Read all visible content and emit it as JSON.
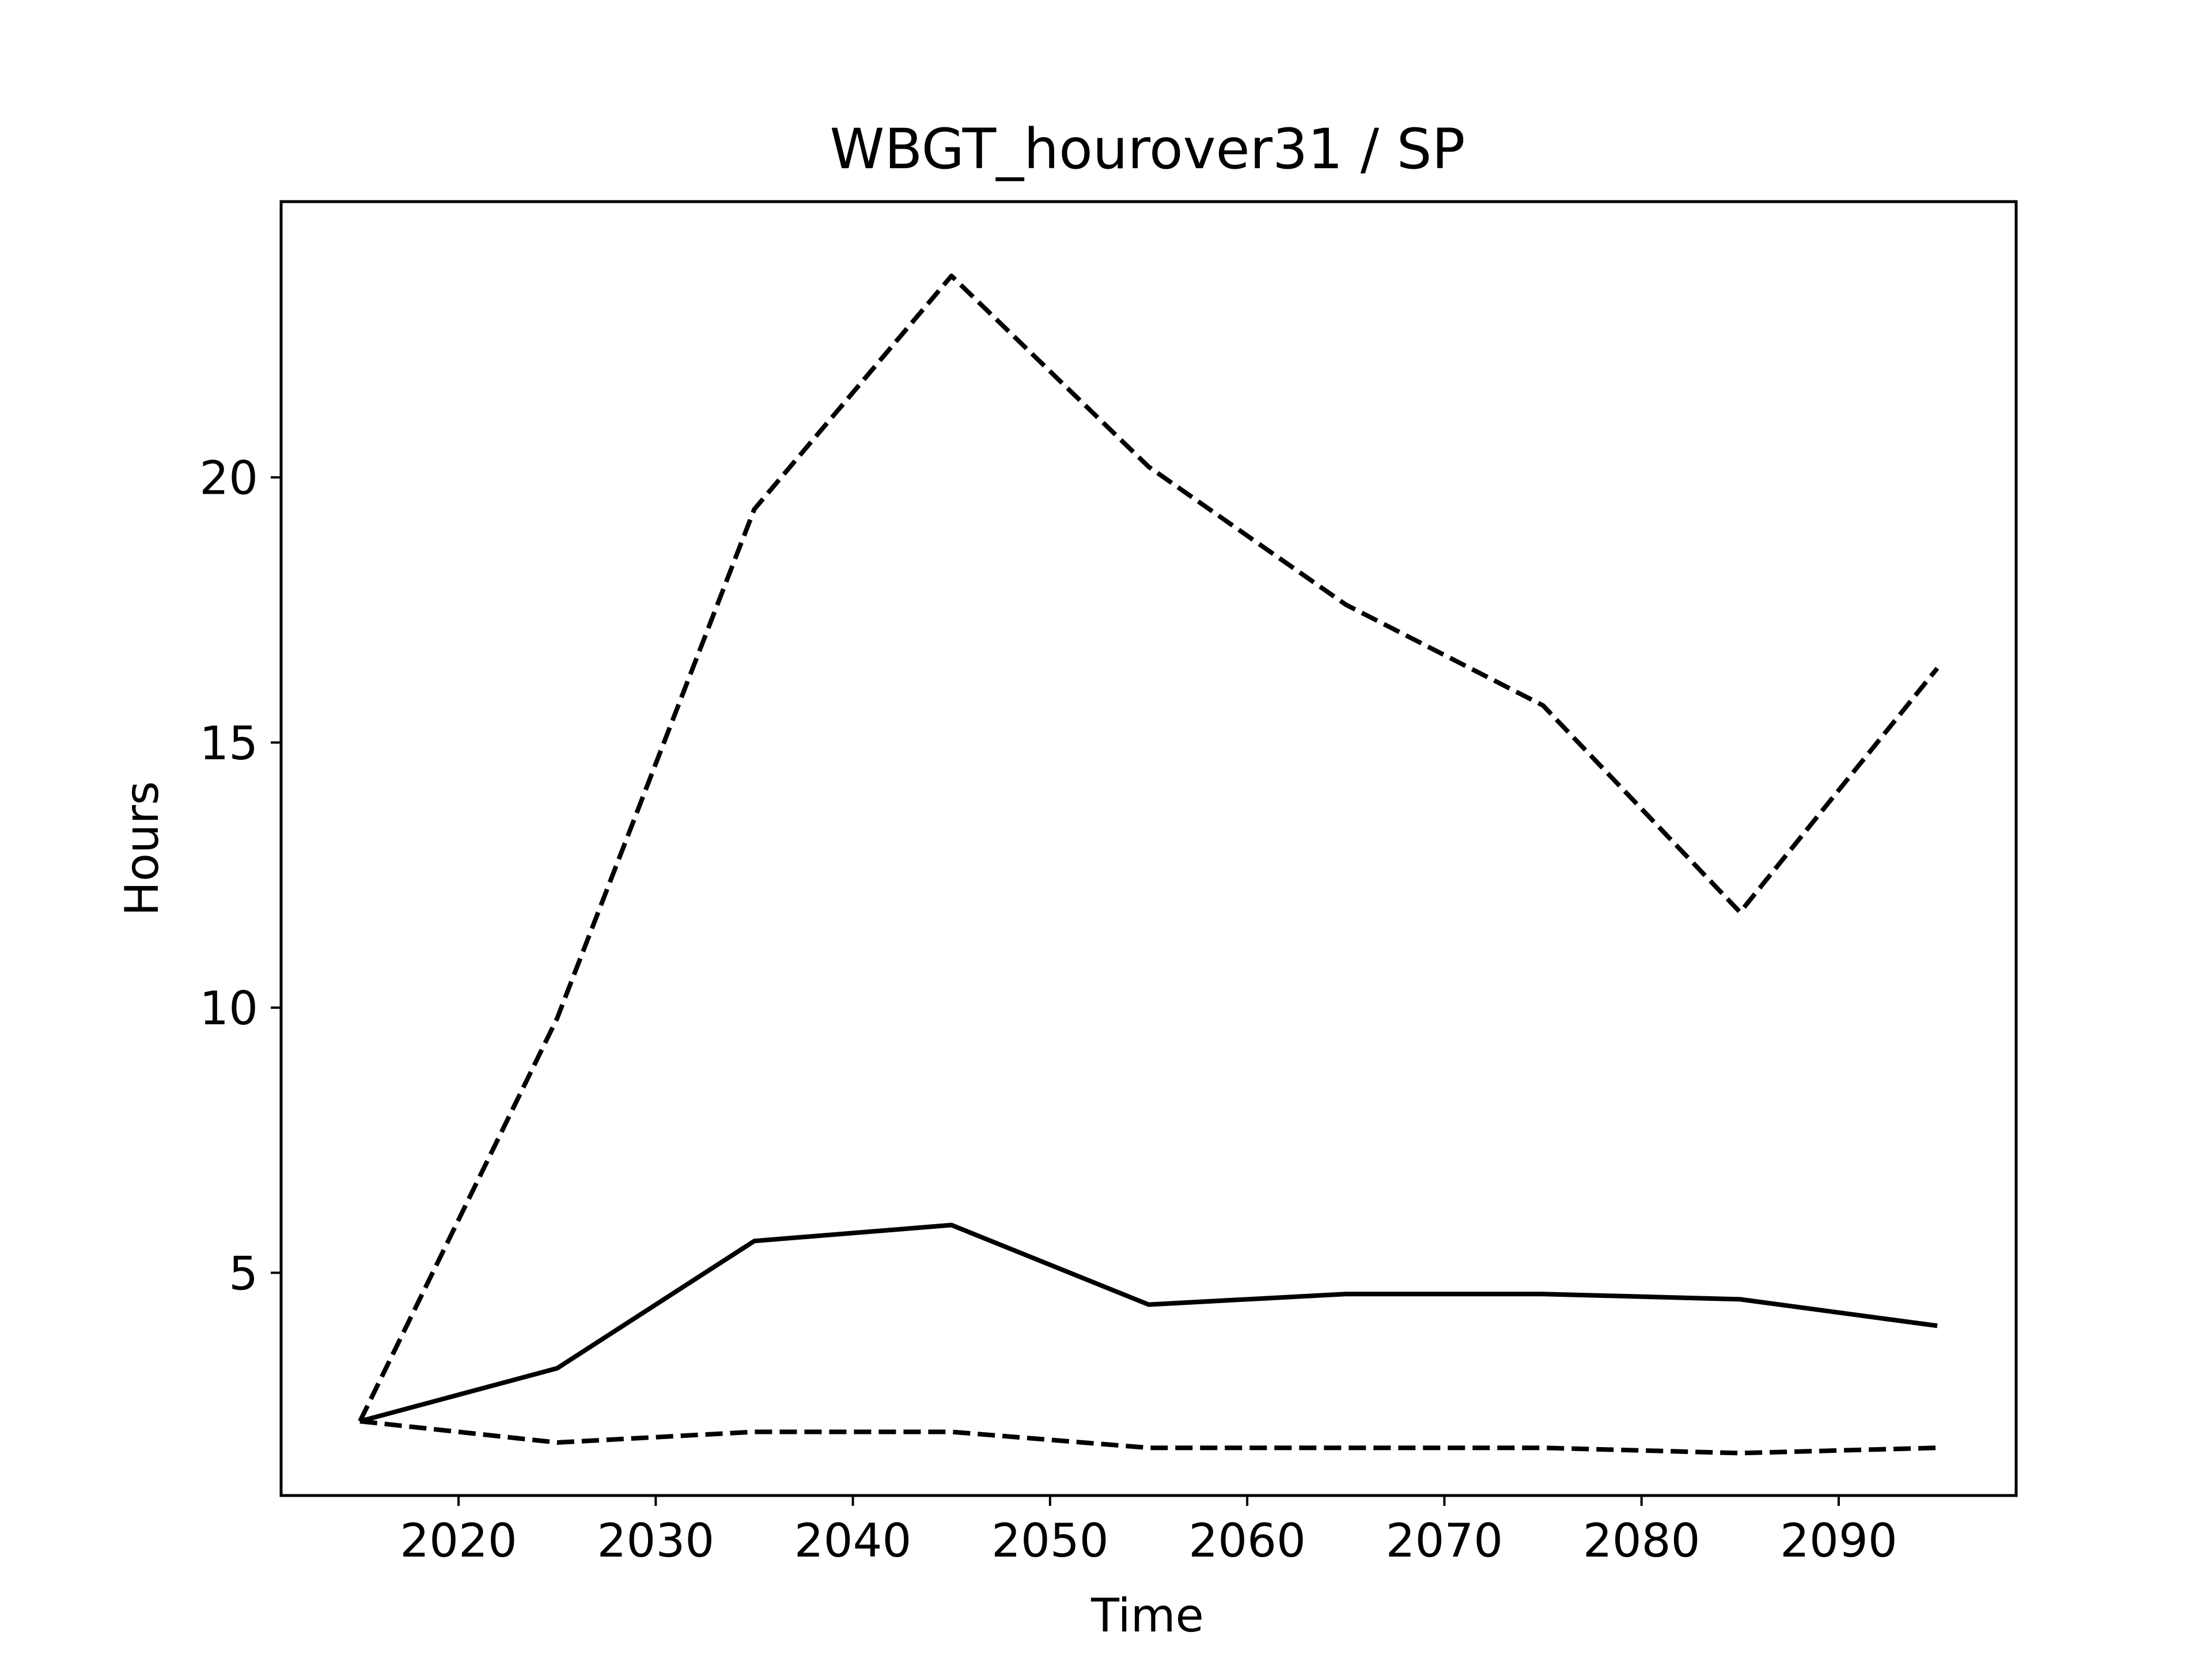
{
  "chart_data": {
    "type": "line",
    "title": "WBGT_hourover31 / SP",
    "xlabel": "Time",
    "ylabel": "Hours",
    "x": [
      2015,
      2025,
      2035,
      2045,
      2055,
      2065,
      2075,
      2085,
      2095
    ],
    "xlim": [
      2011,
      2099
    ],
    "ylim": [
      0.8,
      25.2
    ],
    "xticks": [
      2020,
      2030,
      2040,
      2050,
      2060,
      2070,
      2080,
      2090
    ],
    "yticks": [
      5,
      10,
      15,
      20
    ],
    "grid": false,
    "series": [
      {
        "values": [
          2.2,
          3.2,
          5.6,
          5.9,
          4.4,
          4.6,
          4.6,
          4.5,
          4.0
        ],
        "style": "solid",
        "color": "#000000"
      },
      {
        "values": [
          2.2,
          9.8,
          19.4,
          23.8,
          20.2,
          17.6,
          15.7,
          11.8,
          16.4
        ],
        "style": "dashed",
        "color": "#000000"
      },
      {
        "values": [
          2.2,
          1.8,
          2.0,
          2.0,
          1.7,
          1.7,
          1.7,
          1.6,
          1.7
        ],
        "style": "dashed",
        "color": "#000000"
      }
    ]
  }
}
